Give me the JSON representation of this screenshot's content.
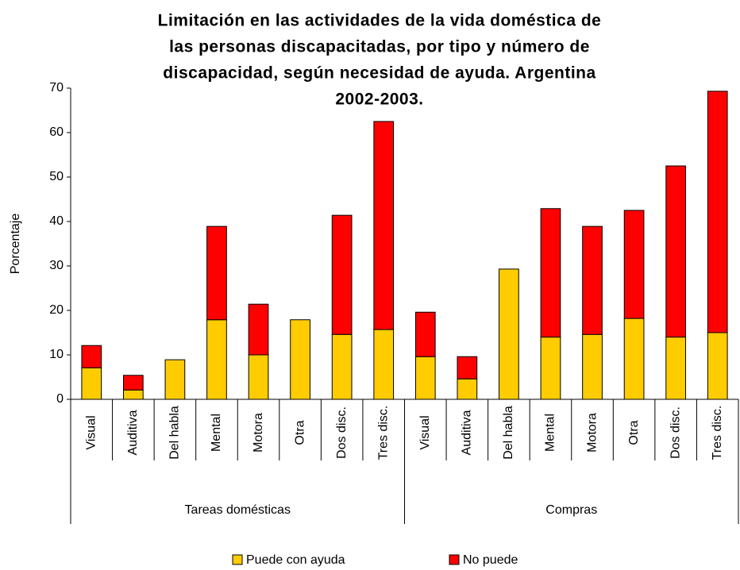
{
  "chart_data": {
    "type": "stacked_bar",
    "title": [
      "Limitación en las actividades de la vida doméstica de",
      "las personas discapacitadas, por tipo y número de",
      "discapacidad, según necesidad de ayuda. Argentina",
      "2002-2003."
    ],
    "y_label": "Porcentaje",
    "categories": [
      "Visual",
      "Auditiva",
      "Del habla",
      "Mental",
      "Motora",
      "Otra",
      "Dos disc.",
      "Tres disc.",
      "Visual",
      "Auditiva",
      "Del habla",
      "Mental",
      "Motora",
      "Otra",
      "Dos disc.",
      "Tres disc."
    ],
    "groups": [
      "Tareas domésticas",
      "Compras"
    ],
    "series": [
      {
        "name": "Puede con ayuda",
        "color": "#ffcc00",
        "values": [
          7.1,
          2.1,
          8.9,
          17.9,
          10,
          17.9,
          14.6,
          15.7,
          9.6,
          4.6,
          29.3,
          14,
          14.6,
          18.2,
          14,
          15
        ]
      },
      {
        "name": "No puede",
        "color": "#ff0000",
        "values": [
          5,
          3.3,
          0,
          21,
          11.4,
          0,
          26.8,
          46.8,
          10,
          5,
          0,
          28.9,
          24.3,
          24.3,
          38.5,
          54.3
        ]
      }
    ],
    "ylim": [
      0,
      70
    ],
    "yticks": [
      0,
      10,
      20,
      30,
      40,
      50,
      60,
      70
    ],
    "legend": "bottom"
  }
}
